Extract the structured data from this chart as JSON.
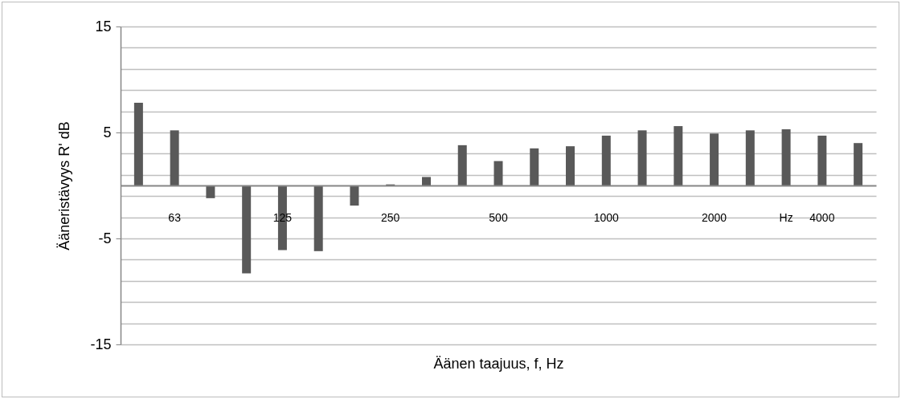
{
  "chart_data": {
    "type": "bar",
    "xlabel": "Äänen taajuus, f, Hz",
    "ylabel": "Ääneristävyys  R' dB",
    "categories": [
      null,
      "63",
      null,
      null,
      "125",
      null,
      null,
      "250",
      null,
      null,
      "500",
      null,
      null,
      "1000",
      null,
      null,
      "2000",
      null,
      "Hz",
      "4000",
      null
    ],
    "values": [
      7.8,
      5.2,
      -1.2,
      -8.3,
      -6.1,
      -6.2,
      -1.9,
      0.1,
      0.8,
      3.8,
      2.3,
      3.5,
      3.7,
      4.7,
      5.2,
      5.6,
      4.9,
      5.2,
      5.3,
      4.7,
      4.0
    ],
    "color": "#595959",
    "ylim": [
      -15,
      15
    ],
    "yticks": [
      -15,
      {
        "value": -13,
        "label": null
      },
      {
        "value": -11,
        "label": null
      },
      {
        "value": -9,
        "label": null
      },
      {
        "value": -7,
        "label": null
      },
      -5,
      {
        "value": -3,
        "label": null
      },
      {
        "value": -1,
        "label": null
      },
      {
        "value": 1,
        "label": null
      },
      {
        "value": 3,
        "label": null
      },
      5,
      {
        "value": 7,
        "label": null
      },
      {
        "value": 9,
        "label": null
      },
      {
        "value": 11,
        "label": null
      },
      {
        "value": 13,
        "label": null
      },
      15
    ],
    "grid": true
  }
}
